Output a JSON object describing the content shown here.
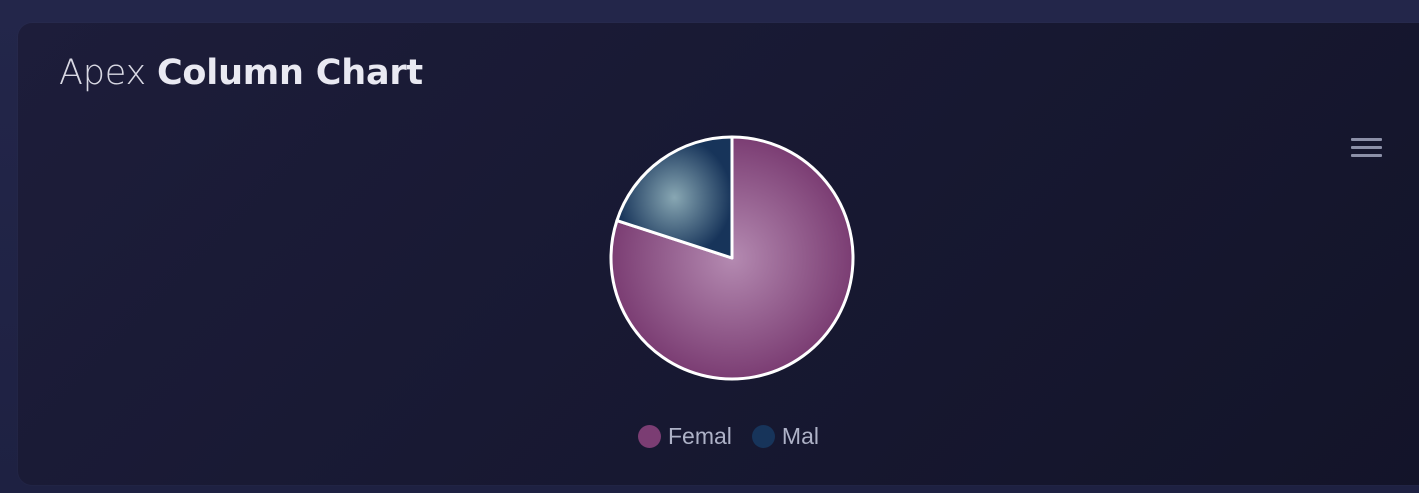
{
  "card": {
    "title_light": "Apex",
    "title_bold": "Column Chart"
  },
  "toolbar": {
    "menu_icon": "hamburger-menu-icon"
  },
  "chart_data": {
    "type": "pie",
    "categories": [
      "Femal",
      "Mal"
    ],
    "values": [
      80,
      20
    ],
    "colors": [
      "#7b3d73",
      "#17345a"
    ],
    "highlight_colors": [
      "#b48ab1",
      "#88a7b3"
    ],
    "legend_position": "bottom"
  }
}
